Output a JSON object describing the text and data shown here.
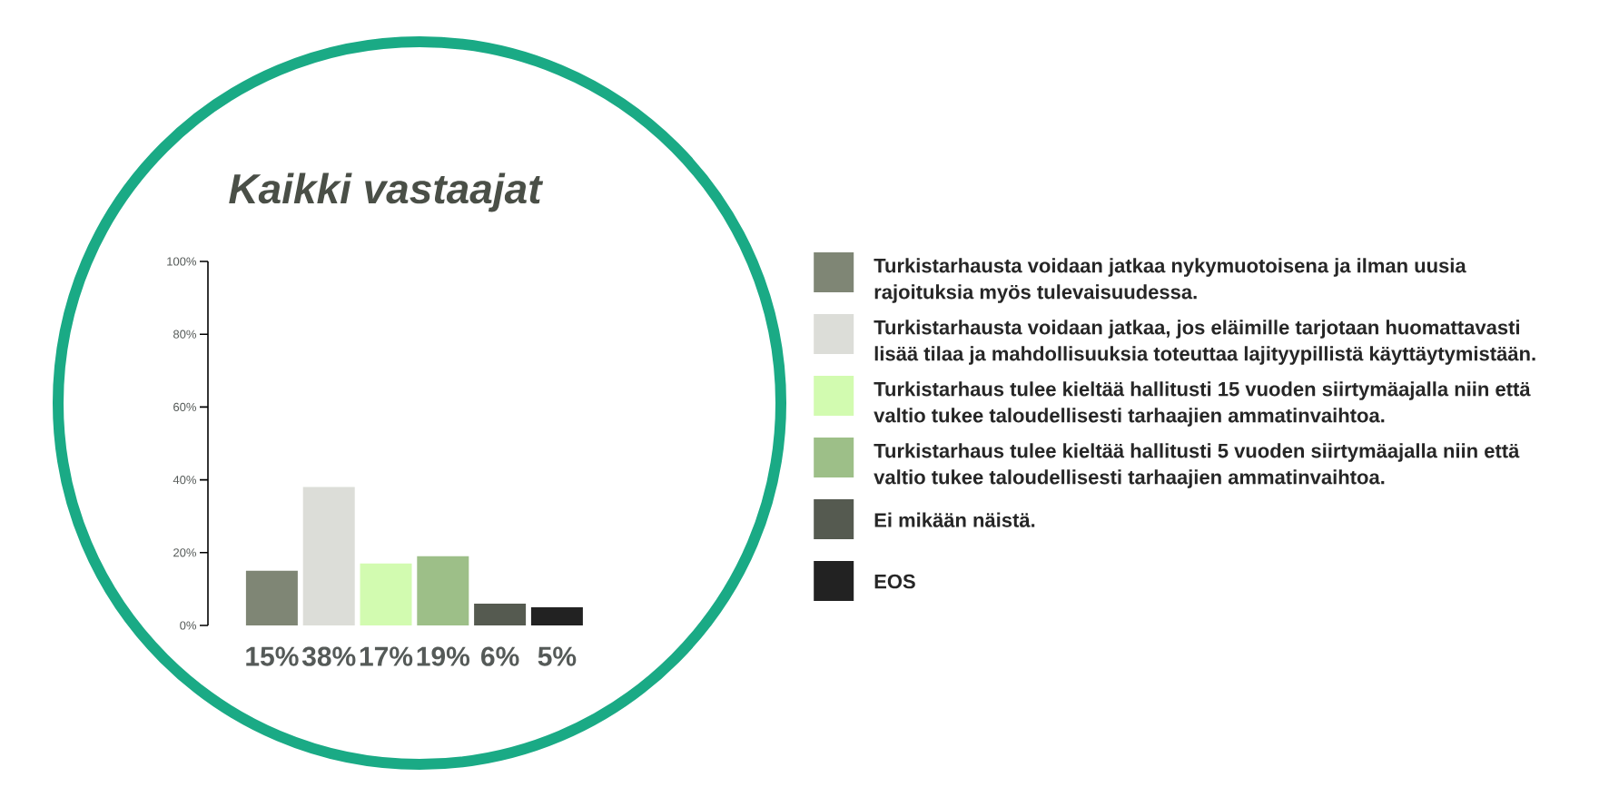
{
  "chart_data": {
    "type": "bar",
    "title": "Kaikki vastaajat",
    "categories": [
      null
    ],
    "series": [
      {
        "name": "Turkistarhausta voidaan jatkaa nykymuotoisena ja ilman uusia rajoituksia myös tulevaisuudessa.",
        "color": "#7f8675",
        "values": [
          15
        ],
        "value_labels": [
          "15%"
        ]
      },
      {
        "name": "Turkistarhausta voidaan jatkaa, jos eläimille tarjotaan huomattavasti lisää tilaa ja mahdollisuuksia toteuttaa lajityypillistä käyttäytymistään.",
        "color": "#dcddd8",
        "values": [
          38
        ],
        "value_labels": [
          "38%"
        ]
      },
      {
        "name": "Turkistarhaus tulee kieltää hallitusti 15 vuoden siirtymäajalla niin että valtio tukee taloudellisesti tarhaajien ammatinvaihtoa.",
        "color": "#d2fbb0",
        "values": [
          17
        ],
        "value_labels": [
          "17%"
        ]
      },
      {
        "name": "Turkistarhaus tulee kieltää hallitusti 5 vuoden siirtymäajalla niin että valtio tukee taloudellisesti tarhaajien ammatinvaihtoa.",
        "color": "#9dbf88",
        "values": [
          19
        ],
        "value_labels": [
          "19%"
        ]
      },
      {
        "name": "Ei mikään näistä.",
        "color": "#555a50",
        "values": [
          6
        ],
        "value_labels": [
          "6%"
        ]
      },
      {
        "name": "EOS",
        "color": "#222222",
        "values": [
          5
        ],
        "value_labels": [
          "5%"
        ]
      }
    ],
    "ylim": [
      0,
      100
    ],
    "yticks": [
      {
        "value": 0,
        "label": "0%"
      },
      {
        "value": 20,
        "label": "20%"
      },
      {
        "value": 40,
        "label": "40%"
      },
      {
        "value": 60,
        "label": "60%"
      },
      {
        "value": 80,
        "label": "80%"
      },
      {
        "value": 100,
        "label": "100%"
      }
    ],
    "legend": "right"
  }
}
